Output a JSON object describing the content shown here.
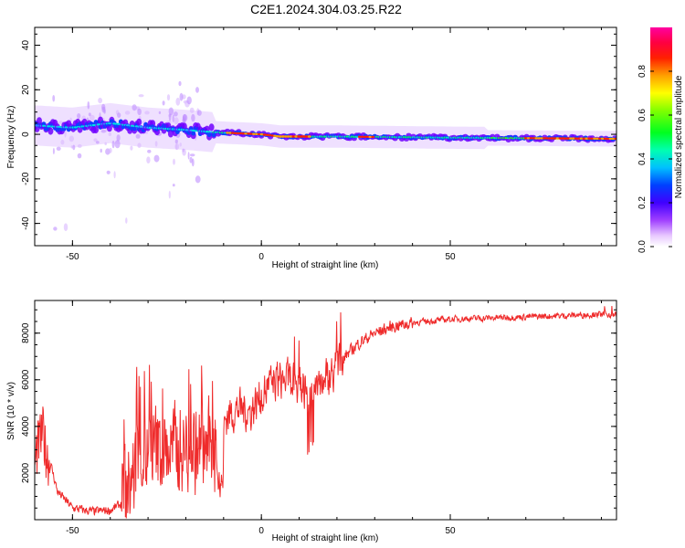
{
  "title": "C2E1.2024.304.03.25.R22",
  "chart_data": [
    {
      "type": "heatmap",
      "xlabel": "Height of straight line (km)",
      "ylabel": "Frequency (Hz)",
      "xlim": [
        -60,
        94
      ],
      "ylim": [
        -50,
        48
      ],
      "xticks": [
        -50,
        0,
        50
      ],
      "yticks": [
        -40,
        -20,
        0,
        20,
        40
      ],
      "colorbar": {
        "label": "Normalized spectral amplitude",
        "range": [
          0,
          1
        ],
        "ticks": [
          0.0,
          0.2,
          0.4,
          0.6,
          0.8
        ],
        "tick_labels": [
          "0.0",
          "0.2",
          "0.4",
          "0.6",
          "0.8"
        ]
      },
      "ridge": [
        {
          "x": -60,
          "y": 4
        },
        {
          "x": -50,
          "y": 3
        },
        {
          "x": -40,
          "y": 5
        },
        {
          "x": -30,
          "y": 3
        },
        {
          "x": -20,
          "y": 2
        },
        {
          "x": -13,
          "y": 1
        },
        {
          "x": 0,
          "y": 0
        },
        {
          "x": 5,
          "y": -1
        },
        {
          "x": 20,
          "y": -1
        },
        {
          "x": 50,
          "y": -1.5
        },
        {
          "x": 94,
          "y": -2
        }
      ]
    },
    {
      "type": "line",
      "xlabel": "Height of straight line (km)",
      "ylabel": "SNR (10 * v/v)",
      "xlim": [
        -60,
        94
      ],
      "ylim": [
        0,
        9400
      ],
      "xticks": [
        -50,
        0,
        50
      ],
      "yticks": [
        2000,
        4000,
        6000,
        8000
      ],
      "series_color": "#ef2b2b",
      "trend": [
        {
          "x": -60,
          "y": 2500
        },
        {
          "x": -58,
          "y": 3600
        },
        {
          "x": -56,
          "y": 2500
        },
        {
          "x": -54,
          "y": 1200
        },
        {
          "x": -50,
          "y": 500
        },
        {
          "x": -45,
          "y": 350
        },
        {
          "x": -40,
          "y": 400
        },
        {
          "x": -37,
          "y": 700
        },
        {
          "x": -35,
          "y": 1500
        },
        {
          "x": -32,
          "y": 2600
        },
        {
          "x": -28,
          "y": 3000
        },
        {
          "x": -24,
          "y": 3000
        },
        {
          "x": -20,
          "y": 3000
        },
        {
          "x": -16,
          "y": 3000
        },
        {
          "x": -12,
          "y": 3100
        },
        {
          "x": -10,
          "y": 4300
        },
        {
          "x": -6,
          "y": 4800
        },
        {
          "x": -3,
          "y": 4600
        },
        {
          "x": 0,
          "y": 5400
        },
        {
          "x": 4,
          "y": 6000
        },
        {
          "x": 8,
          "y": 6000
        },
        {
          "x": 12,
          "y": 5600
        },
        {
          "x": 14,
          "y": 5800
        },
        {
          "x": 18,
          "y": 6200
        },
        {
          "x": 22,
          "y": 7000
        },
        {
          "x": 26,
          "y": 7600
        },
        {
          "x": 30,
          "y": 8000
        },
        {
          "x": 35,
          "y": 8300
        },
        {
          "x": 40,
          "y": 8450
        },
        {
          "x": 50,
          "y": 8600
        },
        {
          "x": 60,
          "y": 8650
        },
        {
          "x": 70,
          "y": 8700
        },
        {
          "x": 80,
          "y": 8750
        },
        {
          "x": 88,
          "y": 8800
        },
        {
          "x": 94,
          "y": 8800
        }
      ]
    }
  ]
}
